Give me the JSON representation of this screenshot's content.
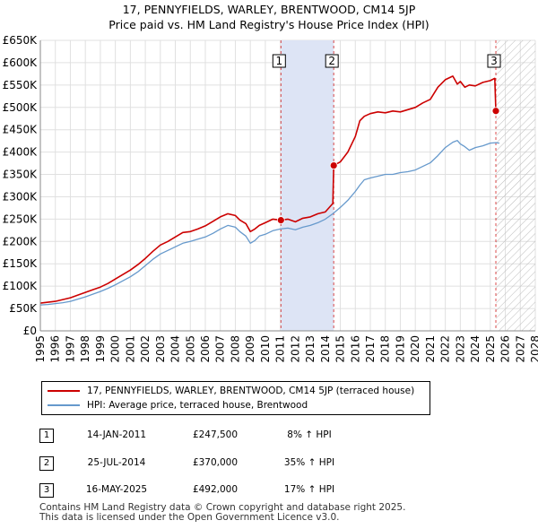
{
  "header": {
    "title_line1": "17, PENNYFIELDS, WARLEY, BRENTWOOD, CM14 5JP",
    "title_line2": "Price paid vs. HM Land Registry's House Price Index (HPI)"
  },
  "chart_data": {
    "type": "line",
    "title": "17, PENNYFIELDS, WARLEY, BRENTWOOD, CM14 5JP — Price paid vs. HM Land Registry's House Price Index (HPI)",
    "xlim": [
      1995,
      2028
    ],
    "ylim": [
      0,
      650000
    ],
    "x_ticks": [
      1995,
      1996,
      1997,
      1998,
      1999,
      2000,
      2001,
      2002,
      2003,
      2004,
      2005,
      2006,
      2007,
      2008,
      2009,
      2010,
      2011,
      2012,
      2013,
      2014,
      2015,
      2016,
      2017,
      2018,
      2019,
      2020,
      2021,
      2022,
      2023,
      2024,
      2025,
      2026,
      2027,
      2028
    ],
    "y_ticks": [
      0,
      50000,
      100000,
      150000,
      200000,
      250000,
      300000,
      350000,
      400000,
      450000,
      500000,
      550000,
      600000,
      650000
    ],
    "y_tick_labels": [
      "£0",
      "£50K",
      "£100K",
      "£150K",
      "£200K",
      "£250K",
      "£300K",
      "£350K",
      "£400K",
      "£450K",
      "£500K",
      "£550K",
      "£600K",
      "£650K"
    ],
    "grid": true,
    "colors": {
      "property": "#cc0000",
      "hpi": "#6699cc",
      "shade": "#dde4f5",
      "vline": "#cc0000"
    },
    "shaded_periods": [
      {
        "from": 2011.04,
        "to": 2014.56
      }
    ],
    "future_hatch_from": 2025.37,
    "series": [
      {
        "name": "17, PENNYFIELDS, WARLEY, BRENTWOOD, CM14 5JP (terraced house)",
        "x": [
          1995,
          1995.5,
          1996,
          1996.5,
          1997,
          1997.5,
          1998,
          1998.5,
          1999,
          1999.5,
          2000,
          2000.5,
          2001,
          2001.5,
          2002,
          2002.5,
          2003,
          2003.5,
          2004,
          2004.5,
          2005,
          2005.5,
          2006,
          2006.5,
          2007,
          2007.5,
          2008,
          2008.3,
          2008.7,
          2009,
          2009.3,
          2009.6,
          2010,
          2010.5,
          2011.04,
          2011.5,
          2012,
          2012.5,
          2013,
          2013.5,
          2014,
          2014.5,
          2014.56,
          2015,
          2015.5,
          2016,
          2016.3,
          2016.6,
          2017,
          2017.5,
          2018,
          2018.5,
          2019,
          2019.5,
          2020,
          2020.5,
          2021,
          2021.5,
          2022,
          2022.5,
          2022.8,
          2023,
          2023.3,
          2023.6,
          2024,
          2024.5,
          2025,
          2025.3,
          2025.37,
          2025.6
        ],
        "y": [
          62000,
          64000,
          66000,
          70000,
          74000,
          80000,
          86000,
          92000,
          98000,
          106000,
          116000,
          126000,
          136000,
          148000,
          162000,
          178000,
          192000,
          200000,
          210000,
          220000,
          222000,
          228000,
          235000,
          245000,
          255000,
          262000,
          258000,
          248000,
          240000,
          222000,
          228000,
          236000,
          242000,
          250000,
          247500,
          250000,
          244000,
          252000,
          255000,
          262000,
          266000,
          285000,
          370000,
          378000,
          400000,
          435000,
          470000,
          480000,
          486000,
          490000,
          488000,
          492000,
          490000,
          495000,
          500000,
          510000,
          518000,
          545000,
          562000,
          570000,
          552000,
          558000,
          545000,
          550000,
          548000,
          556000,
          560000,
          565000,
          492000,
          490000
        ]
      },
      {
        "name": "HPI: Average price, terraced house, Brentwood",
        "x": [
          1995,
          1995.5,
          1996,
          1996.5,
          1997,
          1997.5,
          1998,
          1998.5,
          1999,
          1999.5,
          2000,
          2000.5,
          2001,
          2001.5,
          2002,
          2002.5,
          2003,
          2003.5,
          2004,
          2004.5,
          2005,
          2005.5,
          2006,
          2006.5,
          2007,
          2007.5,
          2008,
          2008.3,
          2008.7,
          2009,
          2009.3,
          2009.6,
          2010,
          2010.5,
          2011,
          2011.5,
          2012,
          2012.5,
          2013,
          2013.5,
          2014,
          2014.5,
          2015,
          2015.5,
          2016,
          2016.3,
          2016.6,
          2017,
          2017.5,
          2018,
          2018.5,
          2019,
          2019.5,
          2020,
          2020.5,
          2021,
          2021.5,
          2022,
          2022.5,
          2022.8,
          2023,
          2023.3,
          2023.6,
          2024,
          2024.5,
          2025,
          2025.37,
          2025.6
        ],
        "y": [
          58000,
          59000,
          61000,
          63000,
          66000,
          71000,
          76000,
          82000,
          88000,
          95000,
          103000,
          112000,
          121000,
          132000,
          146000,
          160000,
          172000,
          180000,
          188000,
          196000,
          200000,
          205000,
          210000,
          218000,
          228000,
          236000,
          232000,
          222000,
          212000,
          196000,
          202000,
          212000,
          216000,
          224000,
          228000,
          230000,
          226000,
          232000,
          236000,
          242000,
          250000,
          262000,
          276000,
          292000,
          312000,
          326000,
          338000,
          342000,
          346000,
          350000,
          350000,
          354000,
          356000,
          360000,
          368000,
          376000,
          392000,
          410000,
          422000,
          426000,
          418000,
          412000,
          404000,
          410000,
          414000,
          420000,
          421000,
          420000
        ]
      }
    ],
    "transactions": [
      {
        "label": "1",
        "date": "14-JAN-2011",
        "price": "£247,500",
        "hpi": "8% ↑ HPI",
        "x": 2011.04,
        "y": 247500
      },
      {
        "label": "2",
        "date": "25-JUL-2014",
        "price": "£370,000",
        "hpi": "35% ↑ HPI",
        "x": 2014.56,
        "y": 370000
      },
      {
        "label": "3",
        "date": "16-MAY-2025",
        "price": "£492,000",
        "hpi": "17% ↑ HPI",
        "x": 2025.37,
        "y": 492000
      }
    ]
  },
  "legend": {
    "property_label": "17, PENNYFIELDS, WARLEY, BRENTWOOD, CM14 5JP (terraced house)",
    "hpi_label": "HPI: Average price, terraced house, Brentwood"
  },
  "footer": {
    "line1": "Contains HM Land Registry data © Crown copyright and database right 2025.",
    "line2": "This data is licensed under the Open Government Licence v3.0."
  }
}
